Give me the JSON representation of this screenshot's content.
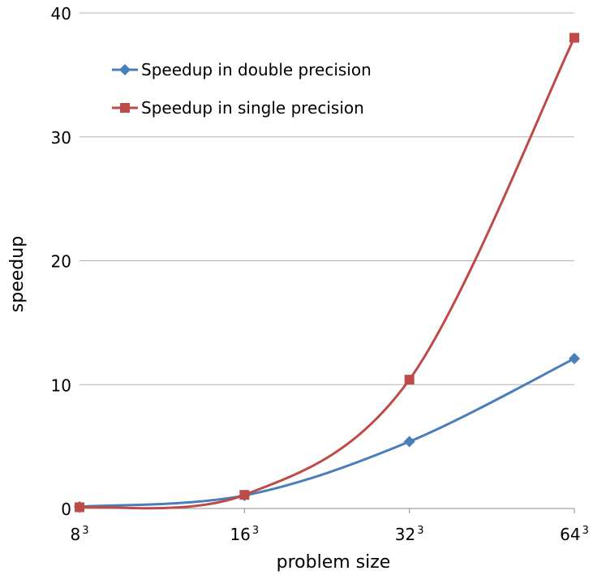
{
  "chart_data": {
    "type": "line",
    "title": "",
    "xlabel": "problem size",
    "ylabel": "speedup",
    "categories": [
      "8",
      "16",
      "32",
      "64"
    ],
    "category_exponent": "3",
    "ylim": [
      0,
      40
    ],
    "yticks": [
      0,
      10,
      20,
      30,
      40
    ],
    "grid": true,
    "legend_position": "top-left",
    "smooth": true,
    "series": [
      {
        "name": "Speedup in double precision",
        "values": [
          0.15,
          1.05,
          5.4,
          12.1
        ],
        "color": "#4a7ebb",
        "marker": "diamond"
      },
      {
        "name": "Speedup in single precision",
        "values": [
          0.1,
          1.1,
          10.4,
          38.0
        ],
        "color": "#be4b48",
        "marker": "square"
      }
    ]
  }
}
